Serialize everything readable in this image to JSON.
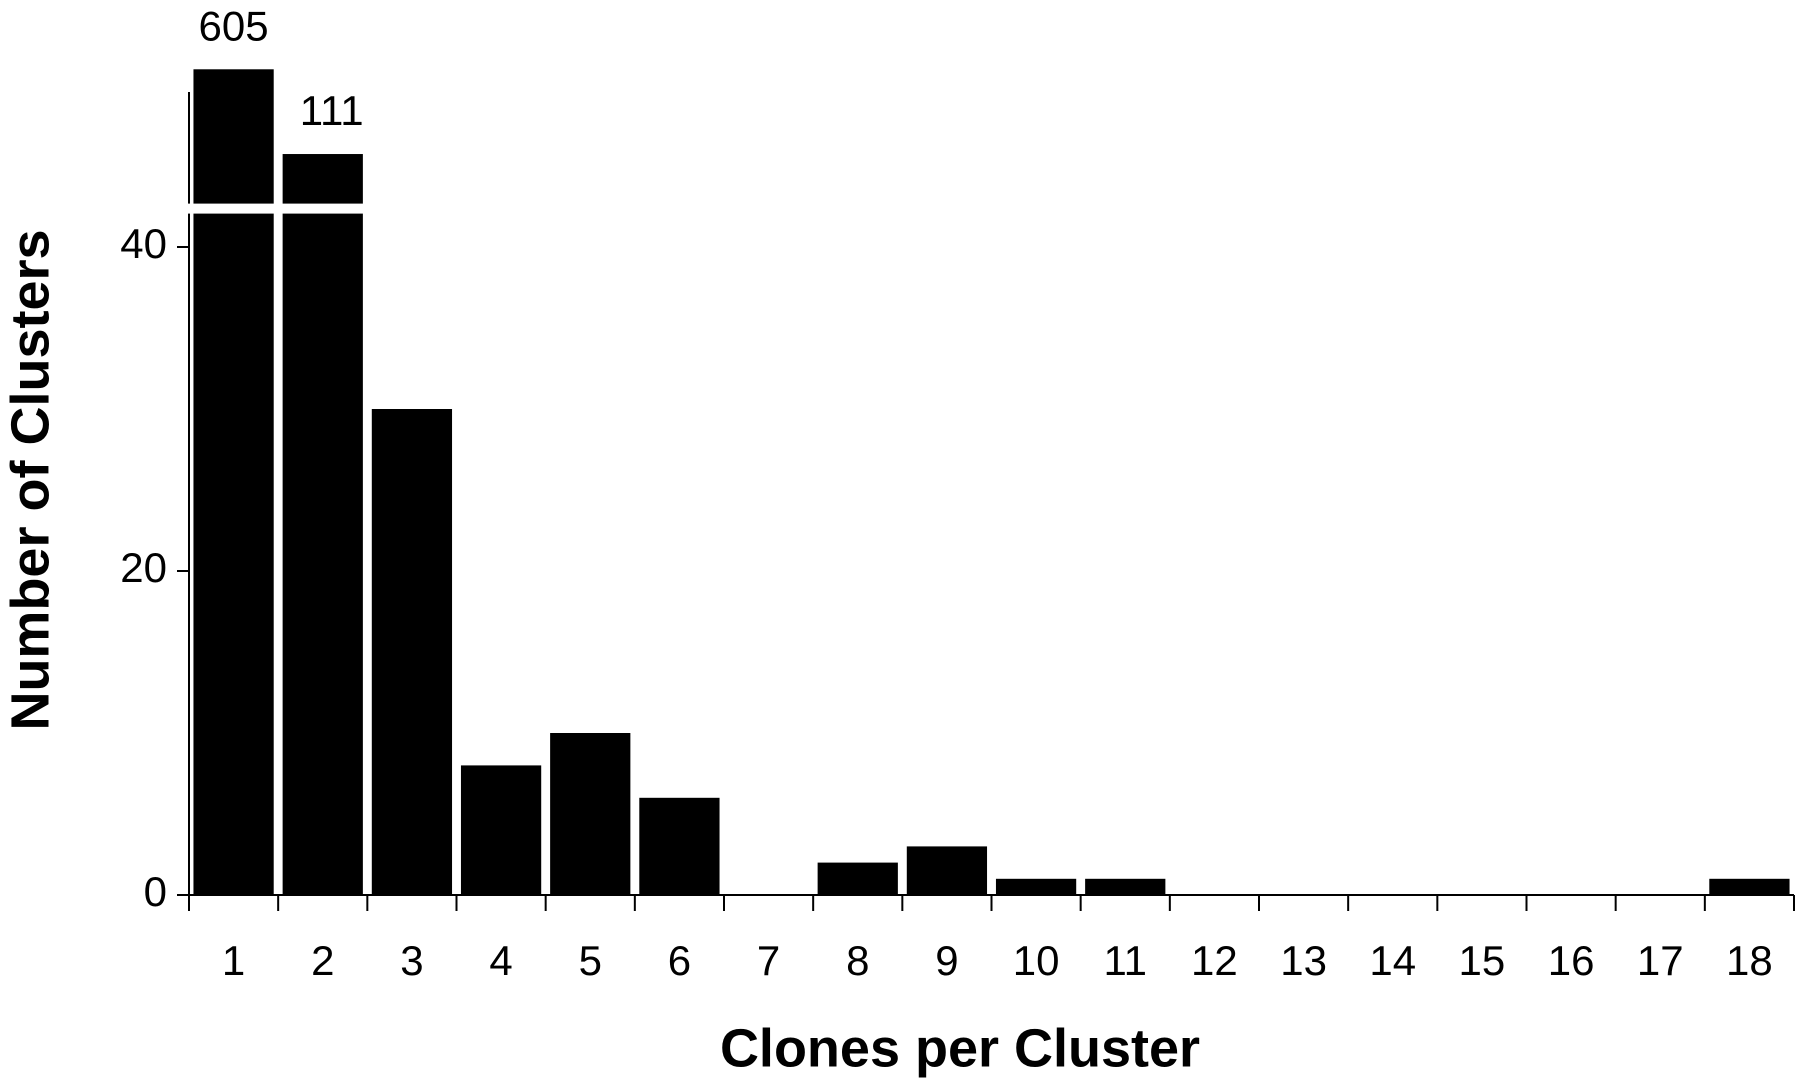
{
  "chart_data": {
    "type": "bar",
    "x_label": "Clones per Cluster",
    "y_label": "Number of Clusters",
    "categories": [
      "1",
      "2",
      "3",
      "4",
      "5",
      "6",
      "7",
      "8",
      "9",
      "10",
      "11",
      "12",
      "13",
      "14",
      "15",
      "16",
      "17",
      "18"
    ],
    "values": [
      605,
      111,
      30,
      8,
      10,
      6,
      0,
      2,
      3,
      1,
      1,
      0,
      0,
      0,
      0,
      0,
      0,
      1
    ],
    "value_labels": [
      "605",
      "111",
      null,
      null,
      null,
      null,
      null,
      null,
      null,
      null,
      null,
      null,
      null,
      null,
      null,
      null,
      null,
      null
    ],
    "color": "#000000",
    "ylim": [
      0,
      700
    ],
    "ybreak": 42,
    "yticks": [
      0,
      20,
      40
    ],
    "grid": false
  }
}
